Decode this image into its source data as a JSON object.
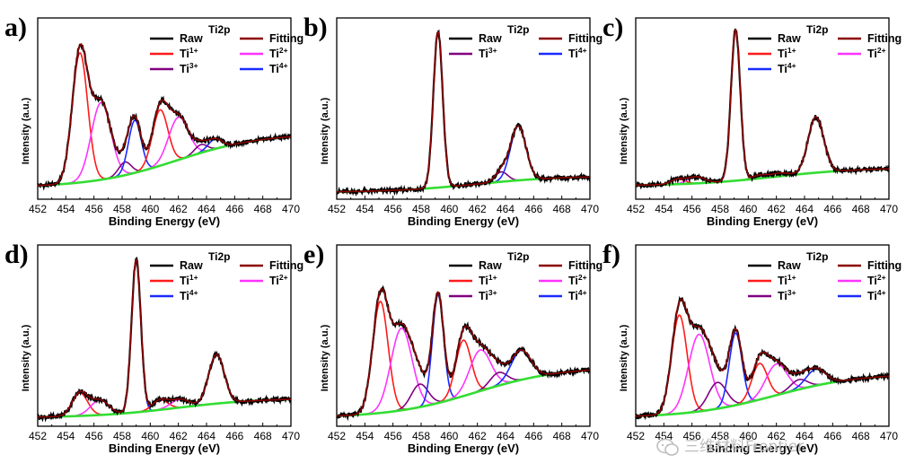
{
  "watermark": {
    "text": "三维材料Frontier",
    "icon": "wechat-icon"
  },
  "colors": {
    "Raw": "#000000",
    "Fitting": "#8b0000",
    "Ti1+": "#ff1a1a",
    "Ti2+": "#ff33ff",
    "Ti3+": "#800080",
    "Ti4+": "#1a2bff",
    "Background": "#33dd33"
  },
  "chart_data": [
    {
      "type": "line",
      "panel": "a)",
      "legend_title": "Ti2p",
      "xlabel": "Binding Energy (eV)",
      "ylabel": "Intensity (a.u.)",
      "xlim": [
        452,
        470
      ],
      "ylim": [
        0,
        1.05
      ],
      "xticks": [
        "452",
        "454",
        "456",
        "458",
        "460",
        "462",
        "464",
        "466",
        "468",
        "470"
      ],
      "legend": [
        {
          "name": "Raw",
          "sup": ""
        },
        {
          "name": "Fitting",
          "sup": ""
        },
        {
          "name": "Ti",
          "sup": "1+",
          "key": "Ti1+"
        },
        {
          "name": "Ti",
          "sup": "2+",
          "key": "Ti2+"
        },
        {
          "name": "Ti",
          "sup": "3+",
          "key": "Ti3+"
        },
        {
          "name": "Ti",
          "sup": "4+",
          "key": "Ti4+"
        }
      ],
      "background": {
        "start": 0.05,
        "end": 0.38
      },
      "peaks": [
        {
          "species": "Ti1+",
          "center": 455.0,
          "amplitude": 0.79,
          "width": 0.55
        },
        {
          "species": "Ti2+",
          "center": 456.5,
          "amplitude": 0.47,
          "width": 0.7
        },
        {
          "species": "Ti3+",
          "center": 458.2,
          "amplitude": 0.08,
          "width": 0.45
        },
        {
          "species": "Ti4+",
          "center": 458.9,
          "amplitude": 0.32,
          "width": 0.45
        },
        {
          "species": "Ti1+",
          "center": 460.7,
          "amplitude": 0.34,
          "width": 0.55
        },
        {
          "species": "Ti2+",
          "center": 462.0,
          "amplitude": 0.26,
          "width": 0.7
        },
        {
          "species": "Ti3+",
          "center": 463.6,
          "amplitude": 0.05,
          "width": 0.45
        },
        {
          "species": "Ti4+",
          "center": 464.6,
          "amplitude": 0.06,
          "width": 0.5
        }
      ]
    },
    {
      "type": "line",
      "panel": "b)",
      "legend_title": "Ti2p",
      "xlabel": "Binding Energy (eV)",
      "ylabel": "Intensity (a.u.)",
      "xlim": [
        452,
        470
      ],
      "ylim": [
        0,
        1.05
      ],
      "xticks": [
        "452",
        "454",
        "456",
        "458",
        "460",
        "462",
        "464",
        "466",
        "468",
        "470"
      ],
      "legend": [
        {
          "name": "Raw",
          "sup": ""
        },
        {
          "name": "Fitting",
          "sup": ""
        },
        {
          "name": "Ti",
          "sup": "3+",
          "key": "Ti3+"
        },
        {
          "name": "Ti",
          "sup": "4+",
          "key": "Ti4+"
        }
      ],
      "background": {
        "start": 0.02,
        "end": 0.12
      },
      "peaks": [
        {
          "species": "Ti4+",
          "center": 459.2,
          "amplitude": 0.95,
          "width": 0.33
        },
        {
          "species": "Ti3+",
          "center": 463.7,
          "amplitude": 0.06,
          "width": 0.45
        },
        {
          "species": "Ti4+",
          "center": 464.9,
          "amplitude": 0.33,
          "width": 0.55
        }
      ]
    },
    {
      "type": "line",
      "panel": "c)",
      "legend_title": "Ti2p",
      "xlabel": "Binding Energy (eV)",
      "ylabel": "Intensity (a.u.)",
      "xlim": [
        452,
        470
      ],
      "ylim": [
        0,
        1.05
      ],
      "xticks": [
        "452",
        "454",
        "456",
        "458",
        "460",
        "462",
        "464",
        "466",
        "468",
        "470"
      ],
      "legend": [
        {
          "name": "Raw",
          "sup": ""
        },
        {
          "name": "Fitting",
          "sup": ""
        },
        {
          "name": "Ti",
          "sup": "1+",
          "key": "Ti1+"
        },
        {
          "name": "Ti",
          "sup": "2+",
          "key": "Ti2+"
        },
        {
          "name": "Ti",
          "sup": "4+",
          "key": "Ti4+"
        }
      ],
      "background": {
        "start": 0.06,
        "end": 0.17
      },
      "peaks": [
        {
          "species": "Ti1+",
          "center": 455.0,
          "amplitude": 0.03,
          "width": 0.5
        },
        {
          "species": "Ti2+",
          "center": 456.3,
          "amplitude": 0.04,
          "width": 0.6
        },
        {
          "species": "Ti4+",
          "center": 459.1,
          "amplitude": 0.92,
          "width": 0.33
        },
        {
          "species": "Ti1+",
          "center": 460.8,
          "amplitude": 0.02,
          "width": 0.5
        },
        {
          "species": "Ti2+",
          "center": 462.2,
          "amplitude": 0.02,
          "width": 0.6
        },
        {
          "species": "Ti4+",
          "center": 464.8,
          "amplitude": 0.34,
          "width": 0.55
        }
      ]
    },
    {
      "type": "line",
      "panel": "d)",
      "legend_title": "Ti2p",
      "xlabel": "Binding Energy (eV)",
      "ylabel": "Intensity (a.u.)",
      "xlim": [
        452,
        470
      ],
      "ylim": [
        0,
        1.05
      ],
      "xticks": [
        "452",
        "454",
        "456",
        "458",
        "460",
        "462",
        "464",
        "466",
        "468",
        "470"
      ],
      "legend": [
        {
          "name": "Raw",
          "sup": ""
        },
        {
          "name": "Fitting",
          "sup": ""
        },
        {
          "name": "Ti",
          "sup": "1+",
          "key": "Ti1+"
        },
        {
          "name": "Ti",
          "sup": "2+",
          "key": "Ti2+"
        },
        {
          "name": "Ti",
          "sup": "4+",
          "key": "Ti4+"
        }
      ],
      "background": {
        "start": 0.03,
        "end": 0.15
      },
      "peaks": [
        {
          "species": "Ti1+",
          "center": 455.0,
          "amplitude": 0.14,
          "width": 0.55
        },
        {
          "species": "Ti2+",
          "center": 456.4,
          "amplitude": 0.09,
          "width": 0.65
        },
        {
          "species": "Ti4+",
          "center": 459.0,
          "amplitude": 0.93,
          "width": 0.33
        },
        {
          "species": "Ti1+",
          "center": 460.7,
          "amplitude": 0.06,
          "width": 0.55
        },
        {
          "species": "Ti2+",
          "center": 462.1,
          "amplitude": 0.05,
          "width": 0.65
        },
        {
          "species": "Ti4+",
          "center": 464.7,
          "amplitude": 0.3,
          "width": 0.55
        }
      ]
    },
    {
      "type": "line",
      "panel": "e)",
      "legend_title": "Ti2p",
      "xlabel": "Binding Energy (eV)",
      "ylabel": "Intensity (a.u.)",
      "xlim": [
        452,
        470
      ],
      "ylim": [
        0,
        1.05
      ],
      "xticks": [
        "452",
        "454",
        "456",
        "458",
        "460",
        "462",
        "464",
        "466",
        "468",
        "470"
      ],
      "legend": [
        {
          "name": "Raw",
          "sup": ""
        },
        {
          "name": "Fitting",
          "sup": ""
        },
        {
          "name": "Ti",
          "sup": "1+",
          "key": "Ti1+"
        },
        {
          "name": "Ti",
          "sup": "2+",
          "key": "Ti2+"
        },
        {
          "name": "Ti",
          "sup": "3+",
          "key": "Ti3+"
        },
        {
          "name": "Ti",
          "sup": "4+",
          "key": "Ti4+"
        }
      ],
      "background": {
        "start": 0.03,
        "end": 0.34
      },
      "peaks": [
        {
          "species": "Ti1+",
          "center": 455.1,
          "amplitude": 0.68,
          "width": 0.55
        },
        {
          "species": "Ti2+",
          "center": 456.6,
          "amplitude": 0.5,
          "width": 0.75
        },
        {
          "species": "Ti3+",
          "center": 457.9,
          "amplitude": 0.14,
          "width": 0.6
        },
        {
          "species": "Ti4+",
          "center": 459.2,
          "amplitude": 0.66,
          "width": 0.4
        },
        {
          "species": "Ti1+",
          "center": 461.0,
          "amplitude": 0.34,
          "width": 0.55
        },
        {
          "species": "Ti2+",
          "center": 462.2,
          "amplitude": 0.25,
          "width": 0.75
        },
        {
          "species": "Ti3+",
          "center": 463.5,
          "amplitude": 0.08,
          "width": 0.6
        },
        {
          "species": "Ti4+",
          "center": 465.1,
          "amplitude": 0.18,
          "width": 0.7
        }
      ]
    },
    {
      "type": "line",
      "panel": "f)",
      "legend_title": "Ti2p",
      "xlabel": "Binding Energy (eV)",
      "ylabel": "Intensity (a.u.)",
      "xlim": [
        452,
        470
      ],
      "ylim": [
        0,
        1.05
      ],
      "xticks": [
        "452",
        "454",
        "456",
        "458",
        "460",
        "462",
        "464",
        "466",
        "468",
        "470"
      ],
      "legend": [
        {
          "name": "Raw",
          "sup": ""
        },
        {
          "name": "Fitting",
          "sup": ""
        },
        {
          "name": "Ti",
          "sup": "1+",
          "key": "Ti1+"
        },
        {
          "name": "Ti",
          "sup": "2+",
          "key": "Ti2+"
        },
        {
          "name": "Ti",
          "sup": "3+",
          "key": "Ti3+"
        },
        {
          "name": "Ti",
          "sup": "4+",
          "key": "Ti4+"
        }
      ],
      "background": {
        "start": 0.03,
        "end": 0.3
      },
      "peaks": [
        {
          "species": "Ti1+",
          "center": 455.1,
          "amplitude": 0.6,
          "width": 0.55
        },
        {
          "species": "Ti2+",
          "center": 456.5,
          "amplitude": 0.47,
          "width": 0.75
        },
        {
          "species": "Ti3+",
          "center": 457.8,
          "amplitude": 0.16,
          "width": 0.65
        },
        {
          "species": "Ti4+",
          "center": 459.1,
          "amplitude": 0.44,
          "width": 0.45
        },
        {
          "species": "Ti1+",
          "center": 460.8,
          "amplitude": 0.22,
          "width": 0.55
        },
        {
          "species": "Ti2+",
          "center": 462.0,
          "amplitude": 0.19,
          "width": 0.75
        },
        {
          "species": "Ti3+",
          "center": 463.6,
          "amplitude": 0.06,
          "width": 0.6
        },
        {
          "species": "Ti4+",
          "center": 464.8,
          "amplitude": 0.1,
          "width": 0.7
        }
      ]
    }
  ]
}
